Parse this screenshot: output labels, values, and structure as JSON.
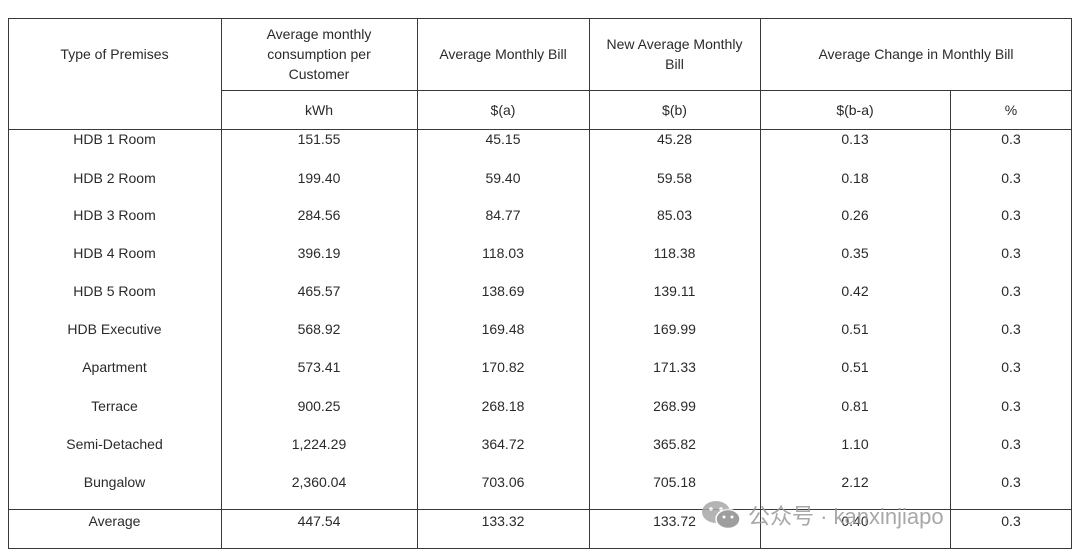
{
  "table": {
    "header": {
      "premises": "Type of Premises",
      "consumption": "Average monthly consumption per Customer",
      "bill": "Average Monthly Bill",
      "new_bill": "New Average Monthly Bill",
      "change": "Average Change in Monthly Bill"
    },
    "units": {
      "consumption": "kWh",
      "bill": "$(a)",
      "new_bill": "$(b)",
      "change_abs": "$(b-a)",
      "change_pct": "%"
    },
    "rows": [
      {
        "premises": "HDB 1 Room",
        "kwh": "151.55",
        "bill": "45.15",
        "new_bill": "45.28",
        "change": "0.13",
        "pct": "0.3"
      },
      {
        "premises": "HDB 2 Room",
        "kwh": "199.40",
        "bill": "59.40",
        "new_bill": "59.58",
        "change": "0.18",
        "pct": "0.3"
      },
      {
        "premises": "HDB 3 Room",
        "kwh": "284.56",
        "bill": "84.77",
        "new_bill": "85.03",
        "change": "0.26",
        "pct": "0.3"
      },
      {
        "premises": "HDB 4 Room",
        "kwh": "396.19",
        "bill": "118.03",
        "new_bill": "118.38",
        "change": "0.35",
        "pct": "0.3"
      },
      {
        "premises": "HDB 5 Room",
        "kwh": "465.57",
        "bill": "138.69",
        "new_bill": "139.11",
        "change": "0.42",
        "pct": "0.3"
      },
      {
        "premises": "HDB Executive",
        "kwh": "568.92",
        "bill": "169.48",
        "new_bill": "169.99",
        "change": "0.51",
        "pct": "0.3"
      },
      {
        "premises": "Apartment",
        "kwh": "573.41",
        "bill": "170.82",
        "new_bill": "171.33",
        "change": "0.51",
        "pct": "0.3"
      },
      {
        "premises": "Terrace",
        "kwh": "900.25",
        "bill": "268.18",
        "new_bill": "268.99",
        "change": "0.81",
        "pct": "0.3"
      },
      {
        "premises": "Semi-Detached",
        "kwh": "1,224.29",
        "bill": "364.72",
        "new_bill": "365.82",
        "change": "1.10",
        "pct": "0.3"
      },
      {
        "premises": "Bungalow",
        "kwh": "2,360.04",
        "bill": "703.06",
        "new_bill": "705.18",
        "change": "2.12",
        "pct": "0.3"
      }
    ],
    "average": {
      "premises": "Average",
      "kwh": "447.54",
      "bill": "133.32",
      "new_bill": "133.72",
      "change": "0.40",
      "pct": "0.3"
    }
  },
  "watermark": {
    "text": "公众号 · kanxinjiapo",
    "icon": "wechat-icon"
  }
}
